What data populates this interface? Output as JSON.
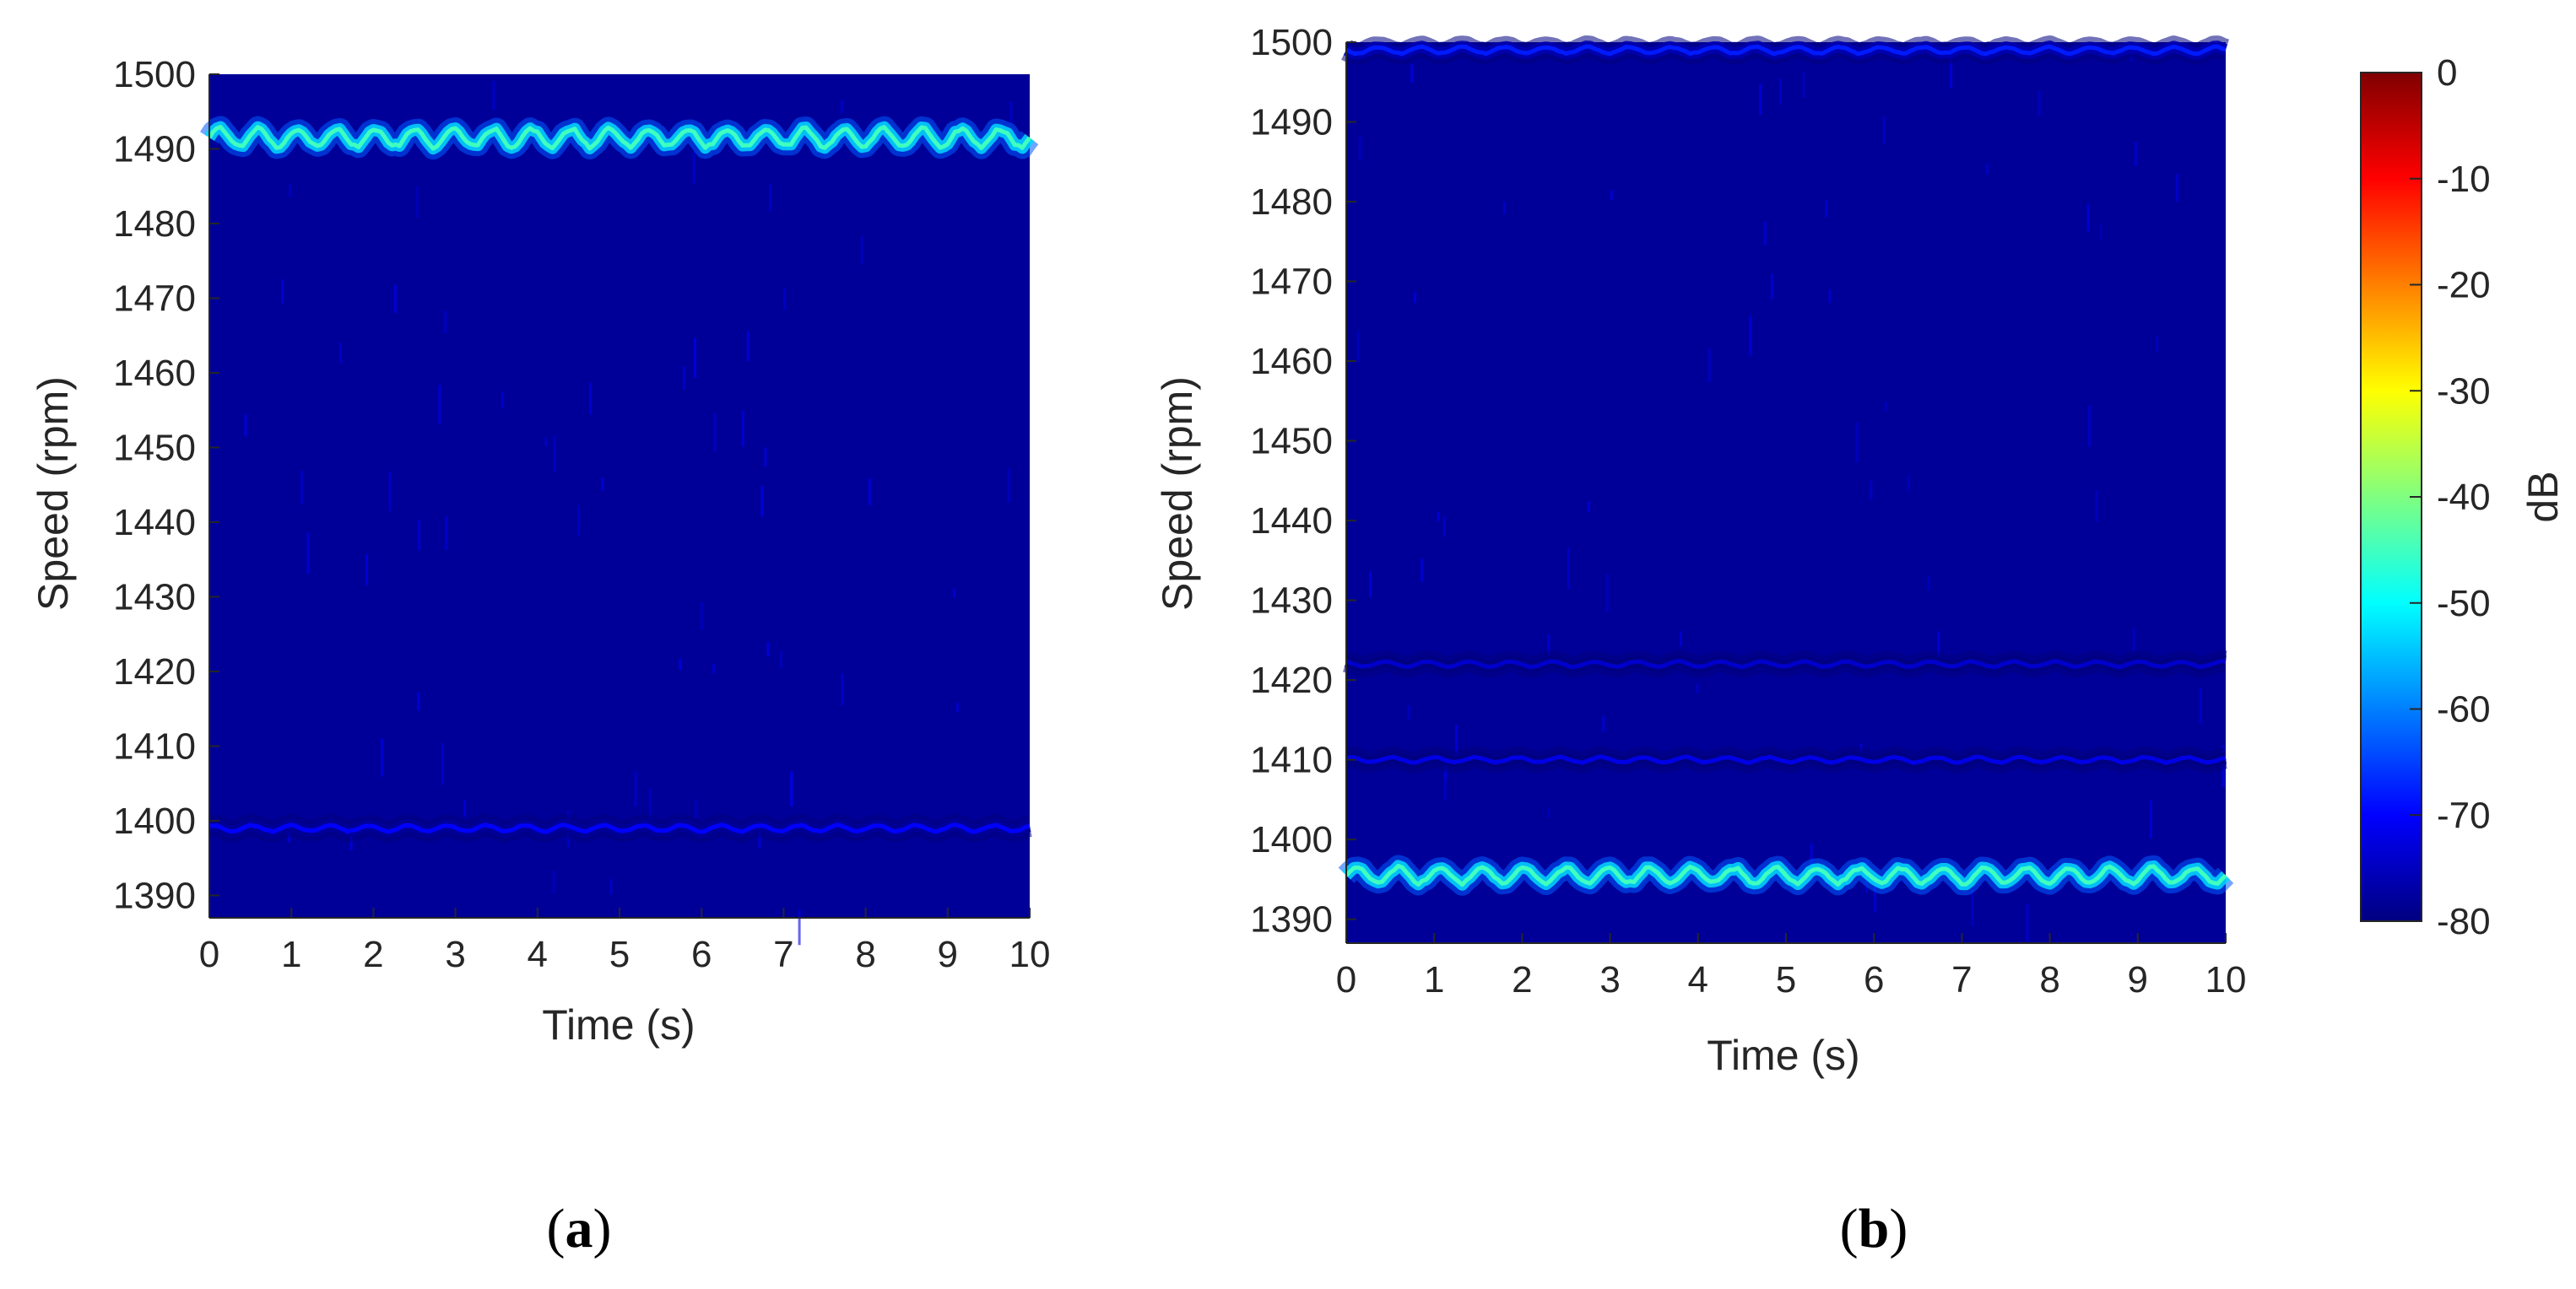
{
  "chart_data": [
    {
      "type": "heatmap",
      "title": "",
      "caption": "(a)",
      "xlabel": "Time (s)",
      "ylabel": "Speed (rpm)",
      "xlim": [
        0,
        10
      ],
      "ylim": [
        1387,
        1500
      ],
      "xticks": [
        "0",
        "1",
        "2",
        "3",
        "4",
        "5",
        "6",
        "7",
        "8",
        "9",
        "10"
      ],
      "yticks": [
        "1390",
        "1400",
        "1410",
        "1420",
        "1430",
        "1440",
        "1450",
        "1460",
        "1470",
        "1480",
        "1490",
        "1500"
      ],
      "background_level_db": -78,
      "ridges": [
        {
          "speed_rpm": 1491.5,
          "level_db": -45,
          "oscillation_rpm": 1.5
        },
        {
          "speed_rpm": 1399,
          "level_db": -70,
          "oscillation_rpm": 0.5
        }
      ]
    },
    {
      "type": "heatmap",
      "title": "",
      "caption": "(b)",
      "xlabel": "Time (s)",
      "ylabel": "Speed (rpm)",
      "xlim": [
        0,
        10
      ],
      "ylim": [
        1387,
        1500
      ],
      "xticks": [
        "0",
        "1",
        "2",
        "3",
        "4",
        "5",
        "6",
        "7",
        "8",
        "9",
        "10"
      ],
      "yticks": [
        "1390",
        "1400",
        "1410",
        "1420",
        "1430",
        "1440",
        "1450",
        "1460",
        "1470",
        "1480",
        "1490",
        "1500"
      ],
      "background_level_db": -78,
      "ridges": [
        {
          "speed_rpm": 1395.5,
          "level_db": -45,
          "oscillation_rpm": 1.2
        },
        {
          "speed_rpm": 1410,
          "level_db": -72,
          "oscillation_rpm": 0.4
        },
        {
          "speed_rpm": 1422,
          "level_db": -74,
          "oscillation_rpm": 0.4
        },
        {
          "speed_rpm": 1499,
          "level_db": -68,
          "oscillation_rpm": 0.5
        }
      ]
    }
  ],
  "colorbar": {
    "label": "dB",
    "min": -80,
    "max": 0,
    "colormap": "jet",
    "ticks": [
      "0",
      "-10",
      "-20",
      "-30",
      "-40",
      "-50",
      "-60",
      "-70",
      "-80"
    ]
  },
  "captions": {
    "a": {
      "open": "(",
      "letter": "a",
      "close": ")"
    },
    "b": {
      "open": "(",
      "letter": "b",
      "close": ")"
    }
  }
}
